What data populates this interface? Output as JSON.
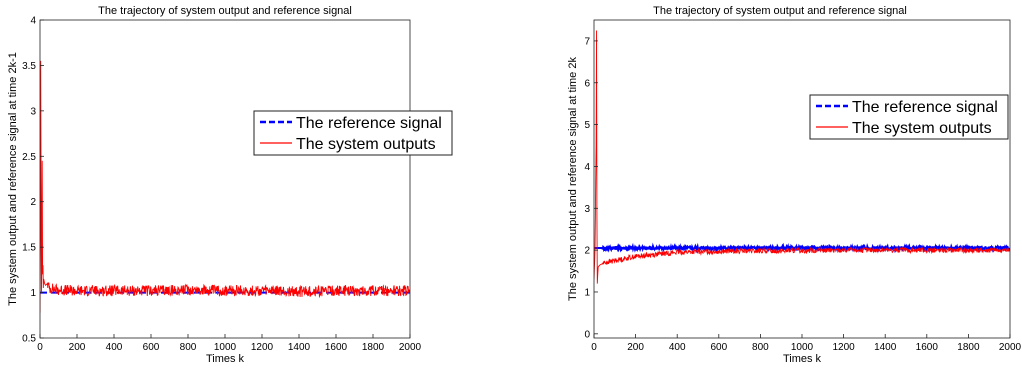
{
  "chart_data": [
    {
      "type": "line",
      "title": "The trajectory of system output and reference signal",
      "xlabel": "Times k",
      "ylabel": "The system output and reference signal at time 2k-1",
      "xlim": [
        0,
        2000
      ],
      "ylim": [
        0.5,
        4
      ],
      "xticks": [
        "0",
        "200",
        "400",
        "600",
        "800",
        "1000",
        "1200",
        "1400",
        "1600",
        "1800",
        "2000"
      ],
      "yticks": [
        "0.5",
        "1",
        "1.5",
        "2",
        "2.5",
        "3",
        "3.5",
        "4"
      ],
      "grid": false,
      "legend_position": "right",
      "series": [
        {
          "name": "The reference signal",
          "style": "dashed",
          "color": "#0000ff",
          "x": [
            0,
            2000
          ],
          "y": [
            1,
            1
          ]
        },
        {
          "name": "The system outputs",
          "style": "solid",
          "color": "#ff0000",
          "x": [
            0,
            2,
            4,
            6,
            8,
            10,
            12,
            14,
            16,
            18,
            20,
            25,
            30,
            40,
            50,
            100,
            200,
            400,
            600,
            800,
            1000,
            1200,
            1400,
            1600,
            1800,
            2000
          ],
          "y": [
            0.78,
            1.6,
            3.55,
            2.2,
            1.0,
            1.5,
            2.45,
            1.2,
            1.3,
            1.05,
            1.15,
            1.1,
            1.08,
            1.1,
            1.05,
            1.03,
            1.02,
            1.02,
            1.02,
            1.03,
            1.02,
            1.02,
            1.01,
            1.02,
            1.02,
            1.02
          ],
          "noise_amplitude": 0.06
        }
      ]
    },
    {
      "type": "line",
      "title": "The trajectory of system output and reference signal",
      "xlabel": "Times k",
      "ylabel": "The system output and reference signal at time 2k",
      "xlim": [
        0,
        2000
      ],
      "ylim": [
        -0.1,
        7.5
      ],
      "xticks": [
        "0",
        "200",
        "400",
        "600",
        "800",
        "1000",
        "1200",
        "1400",
        "1600",
        "1800",
        "2000"
      ],
      "yticks": [
        "0",
        "1",
        "2",
        "3",
        "4",
        "5",
        "6",
        "7"
      ],
      "grid": false,
      "legend_position": "top-right",
      "series": [
        {
          "name": "The reference signal",
          "style": "dashed",
          "color": "#0000ff",
          "x": [
            0,
            2000
          ],
          "y": [
            2.05,
            2.05
          ],
          "noise_amplitude": 0.04
        },
        {
          "name": "The system outputs",
          "style": "solid",
          "color": "#ff0000",
          "x": [
            0,
            5,
            10,
            12,
            14,
            16,
            18,
            20,
            30,
            50,
            100,
            200,
            300,
            400,
            600,
            800,
            1000,
            1200,
            1400,
            1600,
            1800,
            2000
          ],
          "y": [
            1.3,
            2.0,
            4.5,
            7.25,
            3.0,
            1.2,
            1.4,
            1.6,
            1.65,
            1.7,
            1.75,
            1.85,
            1.9,
            1.95,
            1.97,
            1.98,
            1.99,
            2.0,
            2.0,
            2.0,
            2.0,
            2.0
          ],
          "noise_amplitude": 0.06
        }
      ]
    }
  ]
}
